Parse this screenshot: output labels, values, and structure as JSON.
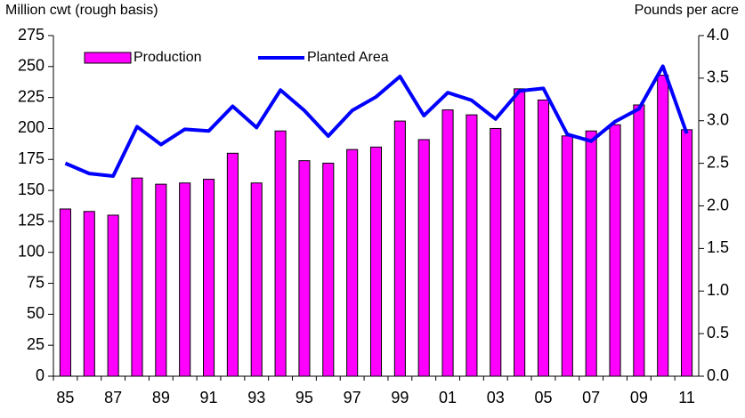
{
  "chart_data": {
    "type": "bar-line",
    "y_label": "Million cwt (rough basis)",
    "y2_label": "Pounds per acre",
    "categories": [
      "85",
      null,
      "87",
      null,
      "89",
      null,
      "91",
      null,
      "93",
      null,
      "95",
      null,
      "97",
      null,
      "99",
      null,
      "01",
      null,
      "03",
      null,
      "05",
      null,
      "07",
      null,
      "09",
      null,
      "11"
    ],
    "series": [
      {
        "name": "Production",
        "type": "bar",
        "color": "#ff00ff",
        "axis": "y",
        "values": [
          135,
          133,
          130,
          160,
          155,
          156,
          159,
          180,
          156,
          198,
          174,
          172,
          183,
          185,
          206,
          191,
          215,
          211,
          200,
          232,
          223,
          194,
          198,
          203,
          219,
          243,
          199
        ]
      },
      {
        "name": "Planted Area",
        "type": "line",
        "color": "#0000ff",
        "axis": "y2",
        "values": [
          2.5,
          2.38,
          2.35,
          2.93,
          2.72,
          2.9,
          2.88,
          3.17,
          2.92,
          3.36,
          3.12,
          2.82,
          3.12,
          3.28,
          3.52,
          3.06,
          3.33,
          3.24,
          3.02,
          3.35,
          3.38,
          2.84,
          2.76,
          2.99,
          3.14,
          3.64,
          2.85
        ]
      }
    ],
    "ylim": [
      0,
      275
    ],
    "yticks": [
      0,
      25,
      50,
      75,
      100,
      125,
      150,
      175,
      200,
      225,
      250,
      275
    ],
    "y2lim": [
      0,
      4
    ],
    "y2ticks": [
      {
        "value": 0,
        "label": "0.0"
      },
      0.5,
      {
        "value": 1,
        "label": "1.0"
      },
      1.5,
      {
        "value": 2,
        "label": "2.0"
      },
      2.5,
      {
        "value": 3,
        "label": "3.0"
      },
      3.5,
      {
        "value": 4,
        "label": "4.0"
      }
    ],
    "legend": "top-left"
  }
}
